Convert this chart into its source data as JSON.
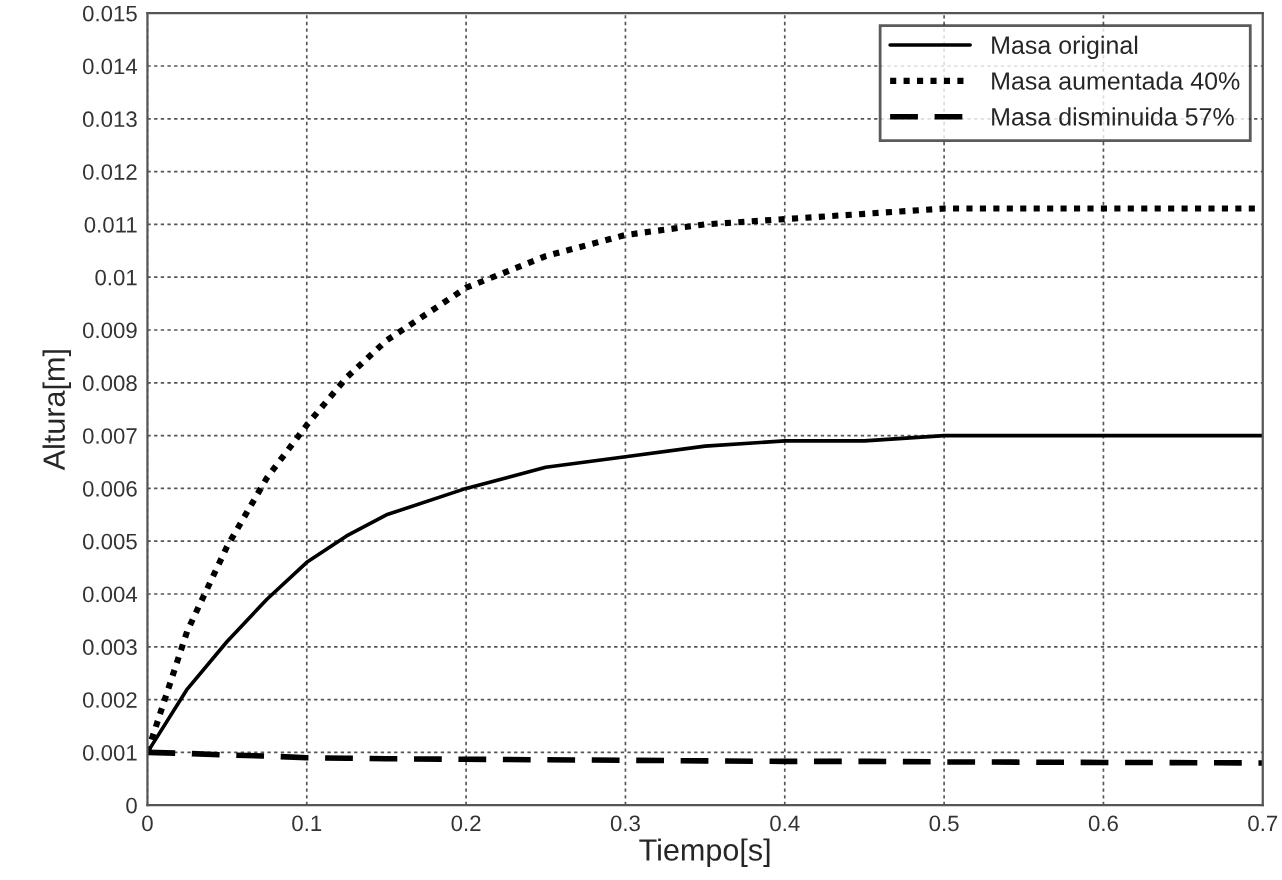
{
  "chart_data": {
    "type": "line",
    "xlabel": "Tiempo[s]",
    "ylabel": "Altura[m]",
    "x": [
      0,
      0.025,
      0.05,
      0.075,
      0.1,
      0.125,
      0.15,
      0.2,
      0.25,
      0.3,
      0.35,
      0.4,
      0.45,
      0.5,
      0.6,
      0.7
    ],
    "series": [
      {
        "name": "Masa original",
        "color": "#000000",
        "line_style": "solid",
        "values": [
          0.001,
          0.0022,
          0.0031,
          0.0039,
          0.0046,
          0.0051,
          0.0055,
          0.006,
          0.0064,
          0.0066,
          0.0068,
          0.0069,
          0.0069,
          0.007,
          0.007,
          0.007
        ]
      },
      {
        "name": "Masa aumentada 40%",
        "color": "#000000",
        "line_style": "dotted",
        "values": [
          0.001,
          0.0033,
          0.0049,
          0.0062,
          0.0072,
          0.0081,
          0.0088,
          0.0098,
          0.0104,
          0.0108,
          0.011,
          0.0111,
          0.0112,
          0.0113,
          0.0113,
          0.0113
        ]
      },
      {
        "name": "Masa disminuida 57%",
        "color": "#000000",
        "line_style": "dashed",
        "values": [
          0.001,
          0.00098,
          0.00095,
          0.00093,
          0.0009,
          0.00089,
          0.00088,
          0.00087,
          0.00086,
          0.00085,
          0.00084,
          0.00083,
          0.00083,
          0.00082,
          0.00081,
          0.0008
        ]
      }
    ],
    "xlim": [
      0,
      0.7
    ],
    "xticks": [
      0,
      0.1,
      0.2,
      0.3,
      0.4,
      0.5,
      0.6,
      0.7
    ],
    "ylim": [
      0,
      0.015
    ],
    "yticks": [
      0,
      0.001,
      0.002,
      0.003,
      0.004,
      0.005,
      0.006,
      0.007,
      0.008,
      0.009,
      0.01,
      0.011,
      0.012,
      0.013,
      0.014,
      0.015
    ],
    "grid": true,
    "legend": "top right"
  }
}
